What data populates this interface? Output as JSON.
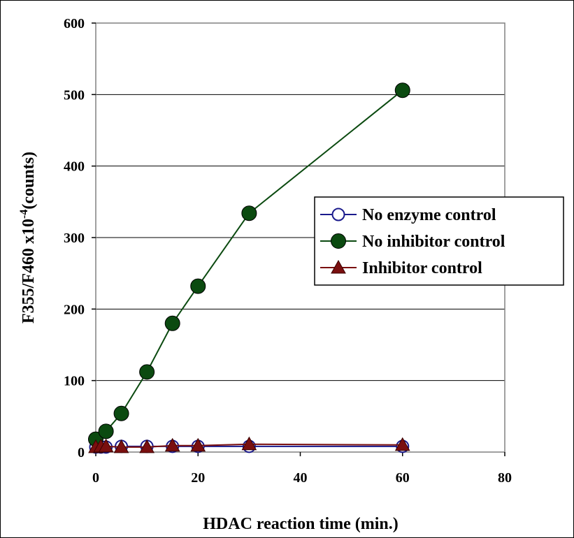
{
  "chart_data": {
    "type": "line",
    "xlabel": "HDAC reaction time (min.)",
    "ylabel_main": "F355/F460 x10",
    "ylabel_sup": "-4",
    "ylabel_tail": "(counts)",
    "xlim": [
      0,
      80
    ],
    "ylim": [
      0,
      600
    ],
    "x_ticks": [
      0,
      20,
      40,
      60,
      80
    ],
    "y_ticks": [
      0,
      100,
      200,
      300,
      400,
      500,
      600
    ],
    "grid": "horizontal",
    "legend_position": "center-right",
    "series": [
      {
        "name": "No enzyme control",
        "color": "#1a1a8c",
        "marker": "open-circle",
        "x": [
          0,
          1,
          2,
          5,
          10,
          15,
          20,
          30,
          60
        ],
        "y": [
          7,
          7,
          7,
          8,
          8,
          8,
          8,
          8,
          8
        ]
      },
      {
        "name": "No inhibitor control",
        "color": "#0b4a10",
        "marker": "filled-circle",
        "x": [
          0,
          2,
          5,
          10,
          15,
          20,
          30,
          60
        ],
        "y": [
          18,
          29,
          54,
          112,
          180,
          232,
          334,
          506
        ]
      },
      {
        "name": "Inhibitor control",
        "color": "#7a0f0f",
        "marker": "triangle",
        "x": [
          0,
          1,
          2,
          5,
          10,
          15,
          20,
          30,
          60
        ],
        "y": [
          7,
          8,
          8,
          7,
          7,
          9,
          9,
          11,
          10
        ]
      }
    ]
  }
}
